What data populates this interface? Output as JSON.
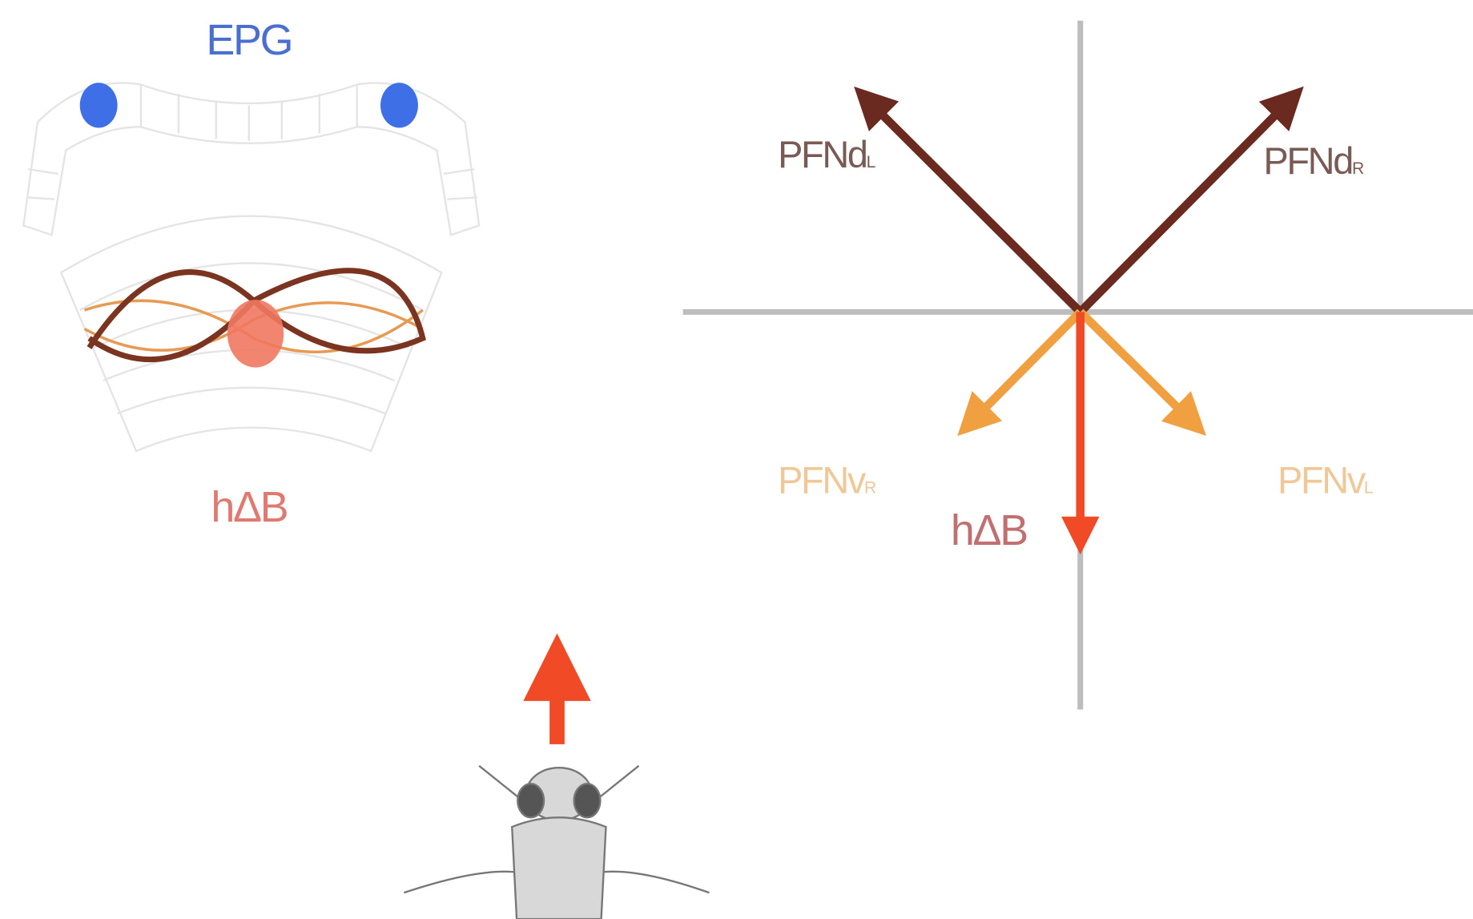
{
  "brain": {
    "top_label": "EPG",
    "bottom_label": "hΔB"
  },
  "vectors": [
    {
      "label": "PFNd",
      "subscript": "L"
    },
    {
      "label": "PFNd",
      "subscript": "R"
    },
    {
      "label": "PFNv",
      "subscript": "R"
    },
    {
      "label": "PFNv",
      "subscript": "L"
    },
    {
      "label": "hΔB"
    }
  ]
}
